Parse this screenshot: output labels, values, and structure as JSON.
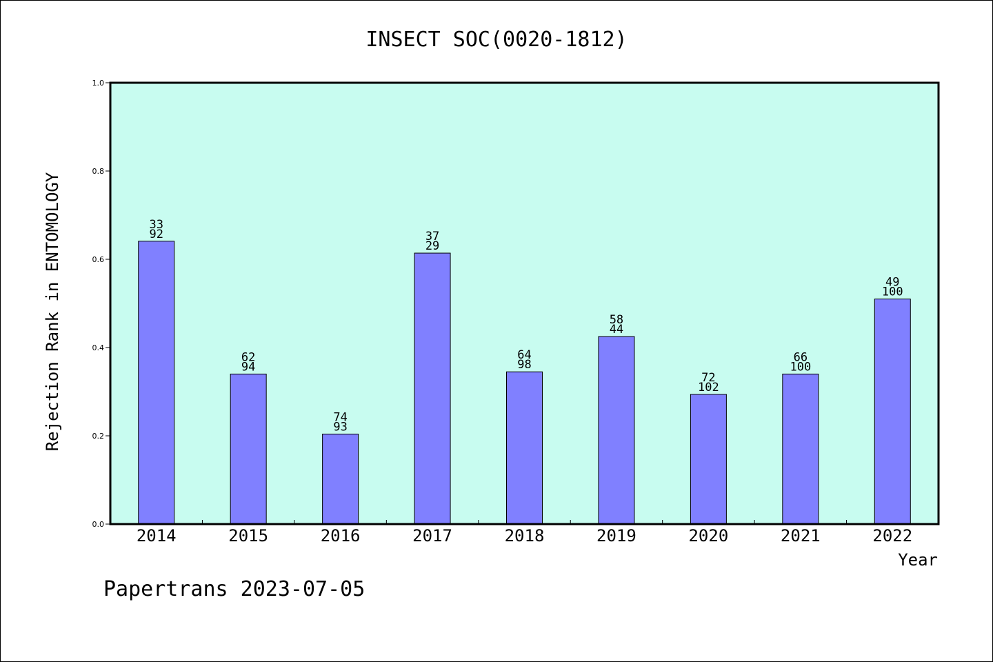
{
  "chart_data": {
    "type": "bar",
    "title": "INSECT SOC(0020-1812)",
    "xlabel": "Year",
    "ylabel": "Rejection Rank in ENTOMOLOGY",
    "ylim": [
      0,
      1.0
    ],
    "yticks": [
      0.0,
      0.2,
      0.4,
      0.6,
      0.8,
      1.0
    ],
    "ytick_labels": [
      "0.0",
      "0.2",
      "0.4",
      "0.6",
      "0.8",
      "1.0"
    ],
    "grid": false,
    "categories": [
      "2014",
      "2015",
      "2016",
      "2017",
      "2018",
      "2019",
      "2020",
      "2021",
      "2022"
    ],
    "values": [
      0.641,
      0.34,
      0.204,
      0.614,
      0.345,
      0.425,
      0.294,
      0.34,
      0.51
    ],
    "bar_labels_top": [
      "33",
      "62",
      "74",
      "37",
      "64",
      "58",
      "72",
      "66",
      "49"
    ],
    "bar_labels_bottom": [
      "92",
      "94",
      "93",
      "29",
      "98",
      "44",
      "102",
      "100",
      "100"
    ],
    "colors": {
      "bar": "#8080ff",
      "plot_background": "#c8fcf0",
      "axis": "#000000"
    }
  },
  "footer": {
    "text": "Papertrans 2023-07-05"
  }
}
